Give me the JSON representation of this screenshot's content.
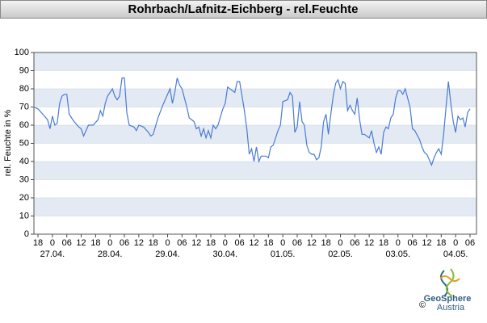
{
  "chart_data": {
    "type": "line",
    "title": "Rohrbach/Lafnitz-Eichberg - rel.Feuchte",
    "y_label": "rel. Feuchte in %",
    "xlim": [
      -1.7,
      182.7
    ],
    "ylim": [
      0,
      100
    ],
    "yticks": [
      0,
      10,
      20,
      30,
      40,
      50,
      60,
      70,
      80,
      90,
      100
    ],
    "xticks": [
      {
        "value": 0,
        "label": "18"
      },
      {
        "value": 6,
        "label": "0"
      },
      {
        "value": 12,
        "label": "06"
      },
      {
        "value": 18,
        "label": "12"
      },
      {
        "value": 24,
        "label": "18"
      },
      {
        "value": 30,
        "label": "0"
      },
      {
        "value": 36,
        "label": "06"
      },
      {
        "value": 42,
        "label": "12"
      },
      {
        "value": 48,
        "label": "18"
      },
      {
        "value": 54,
        "label": "0"
      },
      {
        "value": 60,
        "label": "06"
      },
      {
        "value": 66,
        "label": "12"
      },
      {
        "value": 72,
        "label": "18"
      },
      {
        "value": 78,
        "label": "0"
      },
      {
        "value": 84,
        "label": "06"
      },
      {
        "value": 90,
        "label": "12"
      },
      {
        "value": 96,
        "label": "18"
      },
      {
        "value": 102,
        "label": "0"
      },
      {
        "value": 108,
        "label": "06"
      },
      {
        "value": 114,
        "label": "12"
      },
      {
        "value": 120,
        "label": "18"
      },
      {
        "value": 126,
        "label": "0"
      },
      {
        "value": 132,
        "label": "06"
      },
      {
        "value": 138,
        "label": "12"
      },
      {
        "value": 144,
        "label": "18"
      },
      {
        "value": 150,
        "label": "0"
      },
      {
        "value": 156,
        "label": "06"
      },
      {
        "value": 162,
        "label": "12"
      },
      {
        "value": 168,
        "label": "18"
      },
      {
        "value": 174,
        "label": "0"
      },
      {
        "value": 180,
        "label": "06"
      }
    ],
    "day_labels": [
      {
        "value": 6,
        "label": "27.04."
      },
      {
        "value": 30,
        "label": "28.04."
      },
      {
        "value": 54,
        "label": "29.04."
      },
      {
        "value": 78,
        "label": "30.04."
      },
      {
        "value": 102,
        "label": "01.05."
      },
      {
        "value": 126,
        "label": "02.05."
      },
      {
        "value": 150,
        "label": "03.05."
      },
      {
        "value": 174,
        "label": "04.05."
      }
    ],
    "grid": "bands",
    "series": [
      {
        "color": "#4a7bd6",
        "x": [
          -2,
          0,
          2,
          4,
          5,
          6,
          7,
          8,
          9,
          10,
          11,
          12,
          13,
          15,
          17,
          18,
          19,
          20,
          21,
          23,
          25,
          26,
          27,
          28,
          29,
          31,
          32,
          33,
          34,
          35,
          36,
          37,
          38,
          40,
          41,
          42,
          44,
          46,
          47,
          48,
          50,
          52,
          54,
          55,
          56,
          57,
          58,
          59,
          60,
          61,
          62,
          63,
          65,
          66,
          67,
          68,
          69,
          70,
          71,
          72,
          73,
          74,
          75,
          77,
          78,
          79,
          80,
          82,
          83,
          84,
          85,
          86,
          87,
          88,
          89,
          90,
          91,
          92,
          93,
          95,
          96,
          97,
          98,
          100,
          101,
          102,
          104,
          105,
          106,
          107,
          108,
          109,
          110,
          111,
          112,
          113,
          114,
          115,
          116,
          117,
          118,
          119,
          120,
          121,
          122,
          123,
          124,
          125,
          126,
          127,
          128,
          129,
          130,
          131,
          132,
          133,
          134,
          135,
          136,
          137,
          138,
          139,
          140,
          141,
          142,
          143,
          144,
          145,
          146,
          147,
          148,
          149,
          150,
          151,
          152,
          153,
          154,
          155,
          156,
          157,
          159,
          160,
          161,
          162,
          163,
          164,
          165,
          166,
          167,
          168,
          169,
          170,
          171,
          172,
          173,
          174,
          175,
          176,
          177,
          178,
          179,
          180
        ],
        "values": [
          70,
          69,
          66,
          63,
          58,
          65,
          60,
          61,
          72,
          76,
          77,
          77,
          66,
          62,
          59,
          58,
          54,
          57,
          60,
          60,
          63,
          68,
          65,
          72,
          76,
          80,
          76,
          74,
          76,
          86,
          86,
          67,
          60,
          59,
          57,
          60,
          59,
          56,
          54,
          55,
          64,
          71,
          77,
          80,
          72,
          78,
          86,
          82,
          80,
          75,
          70,
          64,
          62,
          58,
          59,
          54,
          58,
          53,
          57,
          53,
          60,
          58,
          60,
          69,
          72,
          81,
          80,
          78,
          84,
          84,
          76,
          68,
          58,
          44,
          47,
          40,
          48,
          40,
          43,
          43,
          42,
          48,
          49,
          57,
          60,
          73,
          74,
          78,
          76,
          56,
          59,
          73,
          62,
          60,
          49,
          45,
          44,
          44,
          41,
          42,
          48,
          62,
          66,
          55,
          66,
          76,
          83,
          85,
          80,
          84,
          83,
          68,
          71,
          68,
          66,
          75,
          63,
          55,
          55,
          54,
          53,
          57,
          50,
          45,
          48,
          44,
          56,
          59,
          58,
          64,
          66,
          75,
          79,
          79,
          77,
          80,
          75,
          70,
          58,
          57,
          52,
          48,
          45,
          44,
          41,
          38,
          42,
          45,
          47,
          44,
          55,
          70,
          84,
          72,
          62,
          56,
          65,
          63,
          64,
          59,
          67,
          69
        ]
      }
    ]
  },
  "logo": {
    "name": "GeoSphere",
    "sub": "Austria",
    "copyright": "©"
  }
}
